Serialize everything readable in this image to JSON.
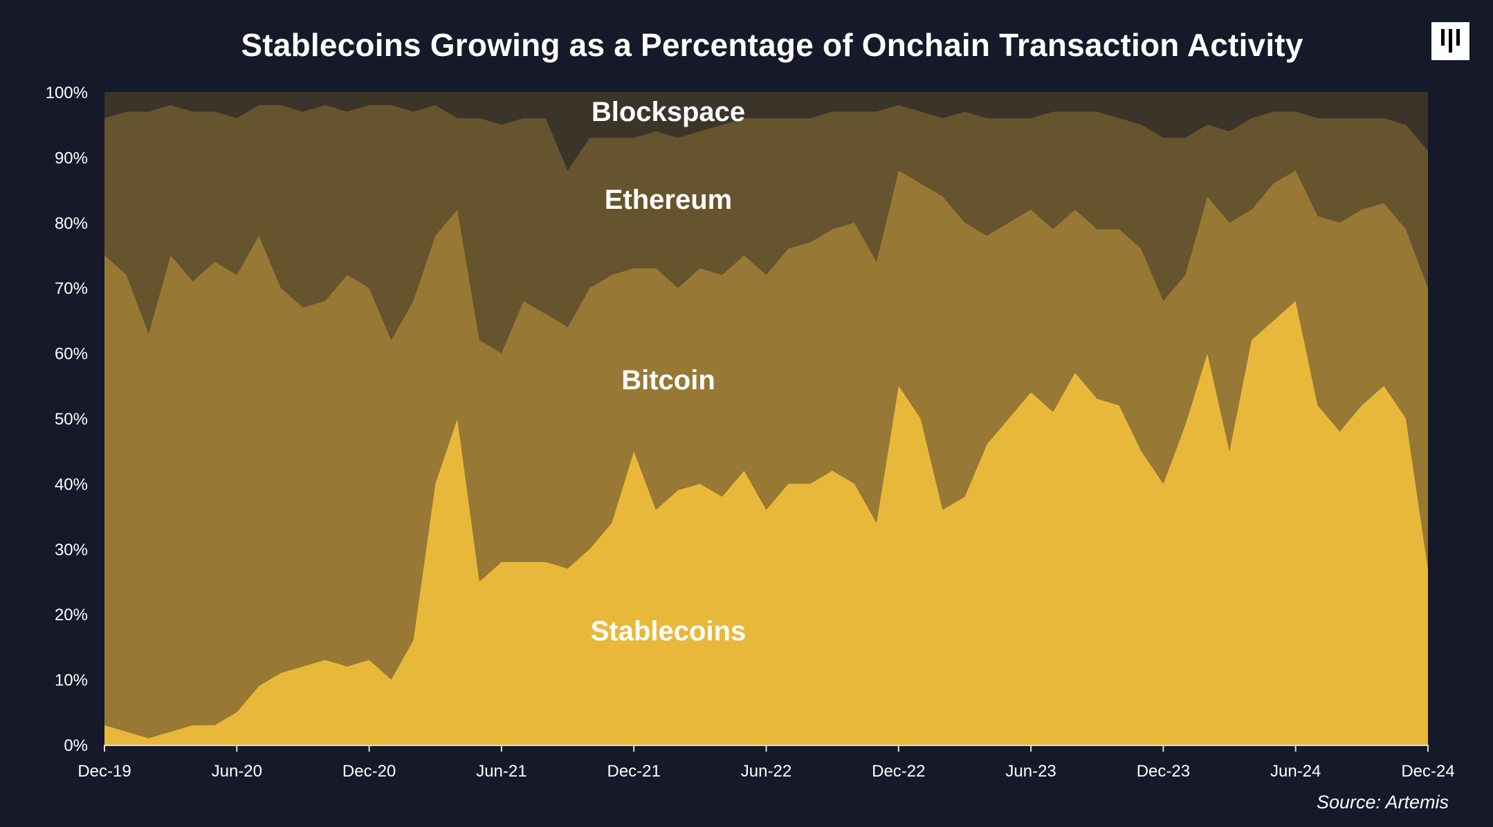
{
  "chart_data": {
    "type": "area",
    "stacking": "percent",
    "title": "Stablecoins Growing as a Percentage of Onchain Transaction Activity",
    "source": "Source: Artemis",
    "ylim": [
      0,
      100
    ],
    "yticks": [
      "0%",
      "10%",
      "20%",
      "30%",
      "40%",
      "50%",
      "60%",
      "70%",
      "80%",
      "90%",
      "100%"
    ],
    "xticks": [
      "Dec-19",
      "Jun-20",
      "Dec-20",
      "Jun-21",
      "Dec-21",
      "Jun-22",
      "Dec-22",
      "Jun-23",
      "Dec-23",
      "Jun-24",
      "Dec-24"
    ],
    "grid": false,
    "legend": "inline labels",
    "categories": [
      "Dec-19",
      "Jan-20",
      "Feb-20",
      "Mar-20",
      "Apr-20",
      "May-20",
      "Jun-20",
      "Jul-20",
      "Aug-20",
      "Sep-20",
      "Oct-20",
      "Nov-20",
      "Dec-20",
      "Jan-21",
      "Feb-21",
      "Mar-21",
      "Apr-21",
      "May-21",
      "Jun-21",
      "Jul-21",
      "Aug-21",
      "Sep-21",
      "Oct-21",
      "Nov-21",
      "Dec-21",
      "Jan-22",
      "Feb-22",
      "Mar-22",
      "Apr-22",
      "May-22",
      "Jun-22",
      "Jul-22",
      "Aug-22",
      "Sep-22",
      "Oct-22",
      "Nov-22",
      "Dec-22",
      "Jan-23",
      "Feb-23",
      "Mar-23",
      "Apr-23",
      "May-23",
      "Jun-23",
      "Jul-23",
      "Aug-23",
      "Sep-23",
      "Oct-23",
      "Nov-23",
      "Dec-23",
      "Jan-24",
      "Feb-24",
      "Mar-24",
      "Apr-24",
      "May-24",
      "Jun-24",
      "Jul-24",
      "Aug-24",
      "Sep-24",
      "Oct-24",
      "Nov-24",
      "Dec-24"
    ],
    "series": [
      {
        "name": "Stablecoins",
        "color": "#e8b83a",
        "values": [
          3,
          2,
          1,
          2,
          3,
          3,
          5,
          9,
          11,
          12,
          13,
          12,
          13,
          10,
          16,
          40,
          50,
          25,
          28,
          28,
          28,
          27,
          30,
          34,
          45,
          36,
          39,
          40,
          38,
          42,
          36,
          40,
          40,
          42,
          40,
          34,
          55,
          50,
          36,
          38,
          46,
          50,
          54,
          51,
          57,
          53,
          52,
          45,
          40,
          49,
          60,
          45,
          62,
          65,
          68,
          52,
          48,
          52,
          55,
          50,
          27
        ]
      },
      {
        "name": "Bitcoin",
        "color": "#977834",
        "values": [
          72,
          70,
          62,
          73,
          68,
          71,
          67,
          69,
          59,
          55,
          55,
          60,
          57,
          52,
          52,
          38,
          32,
          37,
          32,
          40,
          38,
          37,
          40,
          38,
          28,
          37,
          31,
          33,
          34,
          33,
          36,
          36,
          37,
          37,
          40,
          40,
          33,
          36,
          48,
          42,
          32,
          30,
          28,
          28,
          25,
          26,
          27,
          31,
          28,
          23,
          24,
          35,
          20,
          21,
          20,
          29,
          32,
          30,
          28,
          29,
          43
        ]
      },
      {
        "name": "Ethereum",
        "color": "#66542f",
        "values": [
          21,
          25,
          34,
          23,
          26,
          23,
          24,
          20,
          28,
          30,
          30,
          25,
          28,
          36,
          29,
          20,
          14,
          34,
          35,
          28,
          30,
          24,
          23,
          21,
          20,
          21,
          23,
          21,
          23,
          21,
          24,
          20,
          19,
          18,
          17,
          23,
          10,
          11,
          12,
          17,
          18,
          16,
          14,
          18,
          15,
          18,
          17,
          19,
          25,
          21,
          11,
          14,
          14,
          11,
          9,
          15,
          16,
          14,
          13,
          16,
          21
        ]
      },
      {
        "name": "Blockspace",
        "color": "#3b3429",
        "values": [
          4,
          3,
          3,
          2,
          3,
          3,
          4,
          2,
          2,
          3,
          2,
          3,
          2,
          2,
          3,
          2,
          4,
          4,
          5,
          4,
          4,
          12,
          7,
          7,
          7,
          6,
          7,
          6,
          5,
          4,
          4,
          4,
          4,
          3,
          3,
          3,
          2,
          3,
          4,
          3,
          4,
          4,
          4,
          3,
          3,
          3,
          4,
          5,
          7,
          7,
          5,
          6,
          4,
          3,
          3,
          4,
          4,
          4,
          4,
          5,
          9
        ]
      }
    ]
  },
  "colors": {
    "background": "#151929",
    "axis": "#dddddd"
  }
}
